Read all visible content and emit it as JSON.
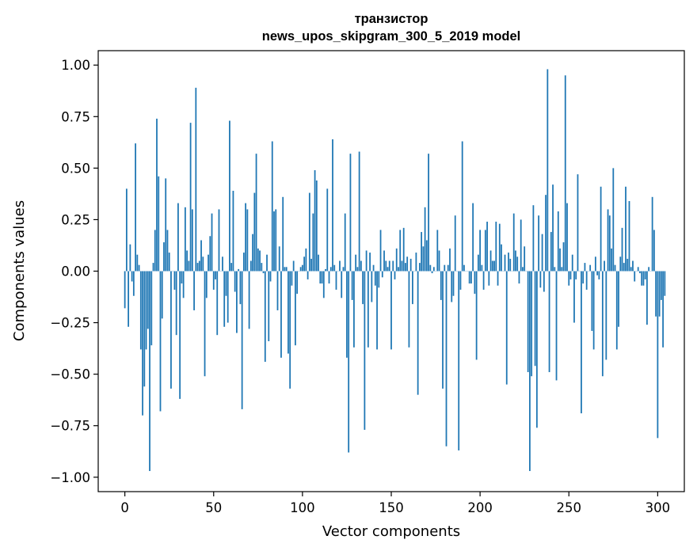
{
  "chart_data": {
    "type": "bar",
    "title": "транзистор",
    "subtitle": "news_upos_skipgram_300_5_2019 model",
    "xlabel": "Vector components",
    "ylabel": "Components values",
    "xlim": [
      -15,
      315
    ],
    "ylim": [
      -1.07,
      1.07
    ],
    "xticks": [
      0,
      50,
      100,
      150,
      200,
      250,
      300
    ],
    "xtick_labels": [
      "0",
      "50",
      "100",
      "150",
      "200",
      "250",
      "300"
    ],
    "yticks": [
      1.0,
      0.75,
      0.5,
      0.25,
      0.0,
      -0.25,
      -0.5,
      -0.75,
      -1.0
    ],
    "ytick_labels": [
      "1.00",
      "0.75",
      "0.50",
      "0.25",
      "0.00",
      "−0.25",
      "−0.50",
      "−0.75",
      "−1.00"
    ],
    "grid": false,
    "bar_color": "#1f77b4",
    "values": [
      -0.18,
      0.4,
      -0.27,
      0.13,
      -0.05,
      -0.12,
      0.62,
      0.08,
      0.03,
      -0.38,
      -0.7,
      -0.56,
      -0.38,
      -0.28,
      -0.97,
      -0.36,
      0.04,
      0.2,
      0.74,
      0.46,
      -0.68,
      -0.23,
      0.14,
      0.45,
      0.2,
      0.09,
      -0.57,
      0.0,
      -0.09,
      -0.31,
      0.33,
      -0.62,
      -0.06,
      -0.13,
      0.31,
      0.1,
      0.05,
      0.72,
      0.3,
      -0.19,
      0.89,
      0.04,
      0.05,
      0.15,
      0.07,
      -0.51,
      -0.13,
      0.08,
      0.17,
      0.28,
      -0.09,
      -0.04,
      -0.31,
      0.3,
      0.0,
      0.07,
      -0.27,
      -0.12,
      -0.25,
      0.73,
      0.04,
      0.39,
      -0.1,
      -0.3,
      0.01,
      -0.16,
      -0.67,
      0.09,
      0.33,
      0.3,
      -0.28,
      0.05,
      0.18,
      0.38,
      0.57,
      0.11,
      0.1,
      0.04,
      -0.01,
      -0.44,
      0.08,
      -0.34,
      -0.05,
      0.63,
      0.29,
      0.3,
      -0.19,
      0.12,
      -0.42,
      0.36,
      0.02,
      0.02,
      -0.4,
      -0.57,
      -0.07,
      0.05,
      -0.36,
      -0.11,
      0.0,
      0.02,
      0.03,
      0.07,
      0.11,
      -0.04,
      0.38,
      0.06,
      0.28,
      0.49,
      0.44,
      0.08,
      -0.06,
      -0.06,
      -0.13,
      0.01,
      0.4,
      -0.06,
      0.02,
      0.64,
      0.03,
      -0.09,
      0.0,
      0.05,
      -0.13,
      0.02,
      0.28,
      -0.42,
      -0.88,
      0.57,
      -0.14,
      -0.37,
      0.08,
      0.02,
      0.58,
      0.05,
      -0.16,
      -0.77,
      0.1,
      -0.37,
      0.09,
      -0.15,
      0.03,
      -0.07,
      -0.38,
      -0.08,
      0.2,
      -0.03,
      0.1,
      0.05,
      0.02,
      0.05,
      -0.38,
      0.05,
      -0.04,
      0.11,
      0.02,
      0.2,
      0.05,
      0.21,
      0.04,
      0.07,
      -0.37,
      0.06,
      -0.16,
      0.0,
      0.09,
      -0.6,
      0.04,
      0.19,
      0.12,
      0.31,
      0.15,
      0.57,
      0.03,
      -0.01,
      0.02,
      0.0,
      0.2,
      0.1,
      -0.14,
      -0.57,
      0.03,
      -0.85,
      0.03,
      0.11,
      -0.15,
      -0.12,
      0.27,
      0.0,
      -0.87,
      -0.09,
      0.63,
      0.03,
      0.0,
      0.0,
      -0.06,
      -0.06,
      0.33,
      -0.11,
      -0.43,
      0.08,
      0.2,
      0.03,
      -0.09,
      0.2,
      0.24,
      -0.07,
      0.1,
      0.05,
      0.05,
      0.24,
      -0.07,
      0.23,
      0.13,
      0.0,
      0.08,
      -0.55,
      0.09,
      0.06,
      0.0,
      0.28,
      0.1,
      0.07,
      -0.06,
      0.25,
      0.02,
      0.12,
      0.0,
      -0.49,
      -0.97,
      -0.51,
      0.32,
      -0.46,
      -0.76,
      0.27,
      -0.08,
      0.18,
      -0.1,
      0.37,
      0.98,
      -0.49,
      0.19,
      0.42,
      0.02,
      -0.53,
      0.29,
      0.11,
      0.02,
      0.14,
      0.95,
      0.33,
      -0.07,
      -0.04,
      0.08,
      -0.25,
      -0.04,
      0.47,
      0.0,
      -0.69,
      -0.06,
      0.04,
      -0.09,
      0.0,
      0.03,
      -0.29,
      -0.38,
      0.07,
      -0.02,
      -0.04,
      0.41,
      -0.51,
      0.05,
      -0.43,
      0.3,
      0.27,
      0.11,
      0.5,
      0.03,
      -0.38,
      -0.27,
      0.07,
      0.21,
      0.04,
      0.41,
      0.06,
      0.34,
      0.02,
      0.05,
      -0.05,
      0.0,
      0.02,
      -0.01,
      -0.07,
      -0.07,
      -0.04,
      -0.26,
      0.02,
      0.0,
      0.36,
      0.2,
      -0.22,
      -0.81,
      -0.22,
      -0.14,
      -0.37,
      -0.12
    ]
  }
}
